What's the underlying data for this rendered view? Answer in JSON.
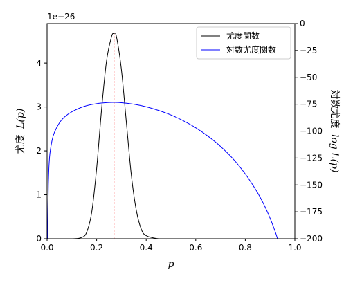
{
  "chart_data": {
    "type": "line",
    "x": {
      "label": "p",
      "lim": [
        0.0,
        1.0
      ],
      "ticks": [
        0.0,
        0.2,
        0.4,
        0.6,
        0.8,
        1.0
      ],
      "tick_labels": [
        "0.0",
        "0.2",
        "0.4",
        "0.6",
        "0.8",
        "1.0"
      ]
    },
    "y_left": {
      "label": "尤度 L(p)",
      "label_plain": "尤度",
      "label_math": "L(p)",
      "offset_text": "1e−26",
      "lim": [
        0.0,
        4.9
      ],
      "ticks": [
        0,
        1,
        2,
        3,
        4
      ],
      "tick_labels": [
        "0",
        "1",
        "2",
        "3",
        "4"
      ]
    },
    "y_right": {
      "label": "対数尤度 log L(p)",
      "label_plain": "対数尤度",
      "label_math": "log L(p)",
      "lim": [
        -200,
        0
      ],
      "ticks": [
        0,
        -25,
        -50,
        -75,
        -100,
        -125,
        -150,
        -175,
        -200
      ],
      "tick_labels": [
        "0",
        "−25",
        "−50",
        "−75",
        "−100",
        "−125",
        "−150",
        "−175",
        "−200"
      ]
    },
    "legend_position": "upper right",
    "series": [
      {
        "name": "尤度関数",
        "axis": "left",
        "color": "#000000",
        "x": [
          0.0,
          0.1,
          0.14,
          0.16,
          0.18,
          0.2,
          0.22,
          0.24,
          0.26,
          0.27,
          0.28,
          0.3,
          0.32,
          0.34,
          0.36,
          0.38,
          0.4,
          0.45,
          0.5,
          0.6,
          0.8,
          1.0
        ],
        "values": [
          0.0,
          0.0,
          0.03,
          0.15,
          0.6,
          1.6,
          2.95,
          4.05,
          4.6,
          4.67,
          4.6,
          3.85,
          2.65,
          1.45,
          0.65,
          0.22,
          0.07,
          0.0,
          0.0,
          0.0,
          0.0,
          0.0
        ]
      },
      {
        "name": "対数尤度関数",
        "axis": "right",
        "color": "#0000ff",
        "x": [
          0.002,
          0.005,
          0.01,
          0.02,
          0.03,
          0.05,
          0.07,
          0.1,
          0.15,
          0.2,
          0.25,
          0.27,
          0.3,
          0.35,
          0.4,
          0.45,
          0.5,
          0.55,
          0.6,
          0.65,
          0.7,
          0.75,
          0.8,
          0.84,
          0.86,
          0.88,
          0.9,
          0.92,
          0.93
        ],
        "values": [
          -200,
          -150,
          -124.2,
          -108.6,
          -100.9,
          -92.2,
          -86.9,
          -82.0,
          -77.0,
          -74.5,
          -73.4,
          -73.3,
          -73.6,
          -75.0,
          -77.4,
          -80.8,
          -85.0,
          -90.4,
          -96.9,
          -104.8,
          -114.2,
          -125.6,
          -139.8,
          -153.6,
          -161.5,
          -170.5,
          -180.9,
          -193.0,
          -200
        ]
      }
    ],
    "annotations": [
      {
        "type": "vline",
        "x": 0.27,
        "color": "#ff0000",
        "style": "dashed",
        "from": 0,
        "to": 4.67
      }
    ]
  }
}
